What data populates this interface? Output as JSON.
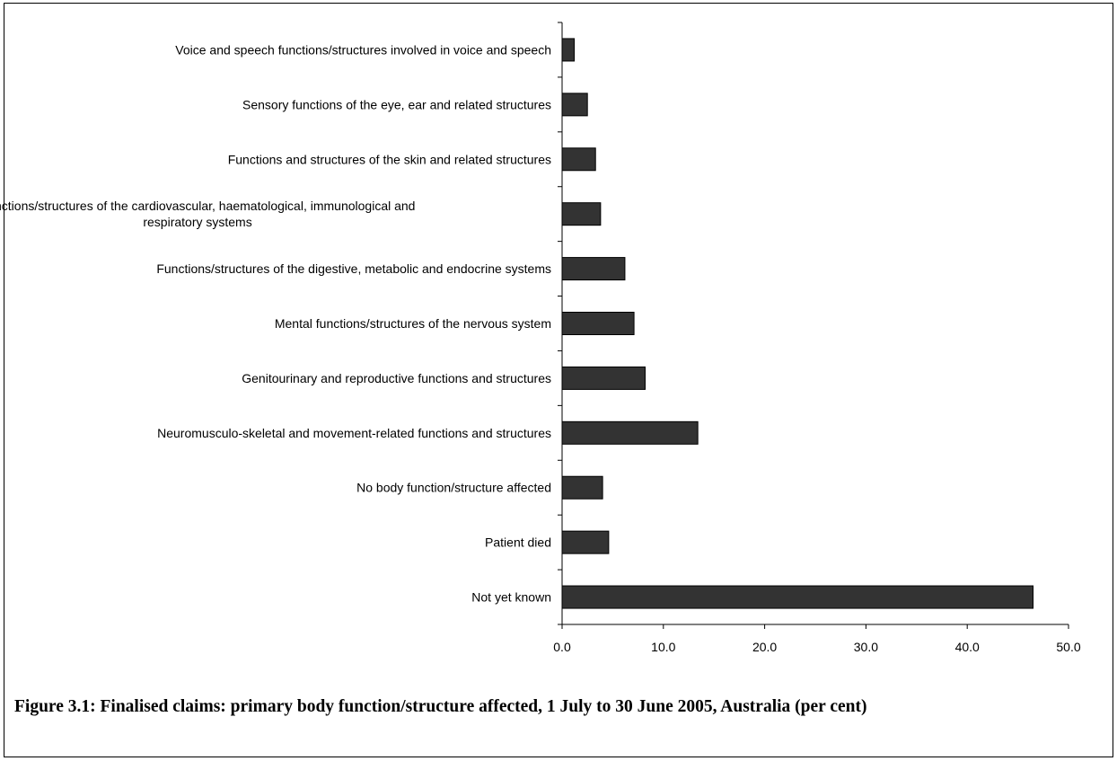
{
  "figure": {
    "caption": "Figure 3.1: Finalised claims: primary body function/structure affected, 1 July to 30 June 2005, Australia (per cent)"
  },
  "chart_data": {
    "type": "bar",
    "orientation": "horizontal",
    "title": "",
    "xlabel": "",
    "ylabel": "",
    "xlim": [
      0,
      50
    ],
    "x_ticks": [
      0,
      10,
      20,
      30,
      40,
      50
    ],
    "x_tick_labels": [
      "0.0",
      "10.0",
      "20.0",
      "30.0",
      "40.0",
      "50.0"
    ],
    "grid": false,
    "legend": "none",
    "bar_color": "#333333",
    "categories": [
      "Voice and speech functions/structures involved in voice and speech",
      "Sensory functions of the eye, ear and related structures",
      "Functions and structures of the skin and related structures",
      "Functions/structures of the cardiovascular, haematological, immunological and respiratory systems",
      "Functions/structures of the digestive, metabolic and endocrine systems",
      "Mental functions/structures of the nervous system",
      "Genitourinary and reproductive functions and structures",
      "Neuromusculo-skeletal and movement-related functions and structures",
      "No body function/structure affected",
      "Patient died",
      "Not yet known"
    ],
    "category_label_lines": [
      [
        "Voice and speech functions/structures involved in voice and speech"
      ],
      [
        "Sensory functions of the eye, ear and related structures"
      ],
      [
        "Functions and structures of the skin and related structures"
      ],
      [
        "Functions/structures of the cardiovascular, haematological, immunological and",
        "respiratory systems"
      ],
      [
        "Functions/structures of the digestive, metabolic and endocrine systems"
      ],
      [
        "Mental functions/structures of the nervous system"
      ],
      [
        "Genitourinary and reproductive functions and structures"
      ],
      [
        "Neuromusculo-skeletal and movement-related functions and structures"
      ],
      [
        "No body function/structure affected"
      ],
      [
        "Patient died"
      ],
      [
        "Not yet known"
      ]
    ],
    "values": [
      1.2,
      2.5,
      3.3,
      3.8,
      6.2,
      7.1,
      8.2,
      13.4,
      4.0,
      4.6,
      46.5
    ]
  }
}
